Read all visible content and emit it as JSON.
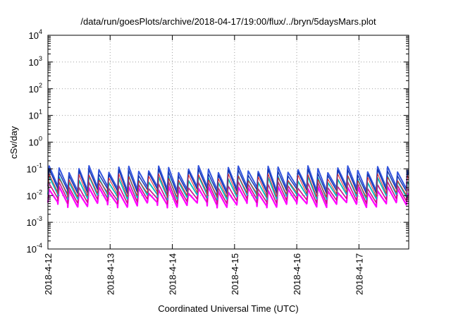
{
  "chart_data": {
    "type": "line",
    "title": "/data/run/goesPlots/archive/2018-04-17/19:00/flux/../bryn/5daysMars.plot",
    "xlabel": "Coordinated Universal Time (UTC)",
    "ylabel": "cSv/day",
    "yscale": "log",
    "ylim": [
      0.0001,
      10000
    ],
    "xlim_days": [
      0,
      5.8
    ],
    "grid": true,
    "y_ticks": [
      {
        "exp": "-4",
        "value": 0.0001
      },
      {
        "exp": "-3",
        "value": 0.001
      },
      {
        "exp": "-2",
        "value": 0.01
      },
      {
        "exp": "-1",
        "value": 0.1
      },
      {
        "exp": "0",
        "value": 1
      },
      {
        "exp": "1",
        "value": 10
      },
      {
        "exp": "2",
        "value": 100
      },
      {
        "exp": "3",
        "value": 1000
      },
      {
        "exp": "4",
        "value": 10000
      }
    ],
    "x_ticks": [
      {
        "label": "2018-4-12",
        "day": 0
      },
      {
        "label": "2018-4-13",
        "day": 1
      },
      {
        "label": "2018-4-14",
        "day": 2
      },
      {
        "label": "2018-4-15",
        "day": 3
      },
      {
        "label": "2018-4-16",
        "day": 4
      },
      {
        "label": "2018-4-17",
        "day": 5
      }
    ],
    "series": [
      {
        "color": "#ff00ff",
        "low": 0.005,
        "high": 0.02,
        "width": 2.2
      },
      {
        "color": "#cc1188",
        "low": 0.007,
        "high": 0.03,
        "width": 1.6
      },
      {
        "color": "#00bbbb",
        "low": 0.01,
        "high": 0.05,
        "width": 1.8
      },
      {
        "color": "#3355dd",
        "low": 0.02,
        "high": 0.12,
        "width": 2.0
      },
      {
        "color": "#1133aa",
        "low": 0.016,
        "high": 0.09,
        "width": 1.4
      },
      {
        "color": "#dd2222",
        "low": 0.012,
        "high": 0.06,
        "width": 1.0
      }
    ]
  }
}
